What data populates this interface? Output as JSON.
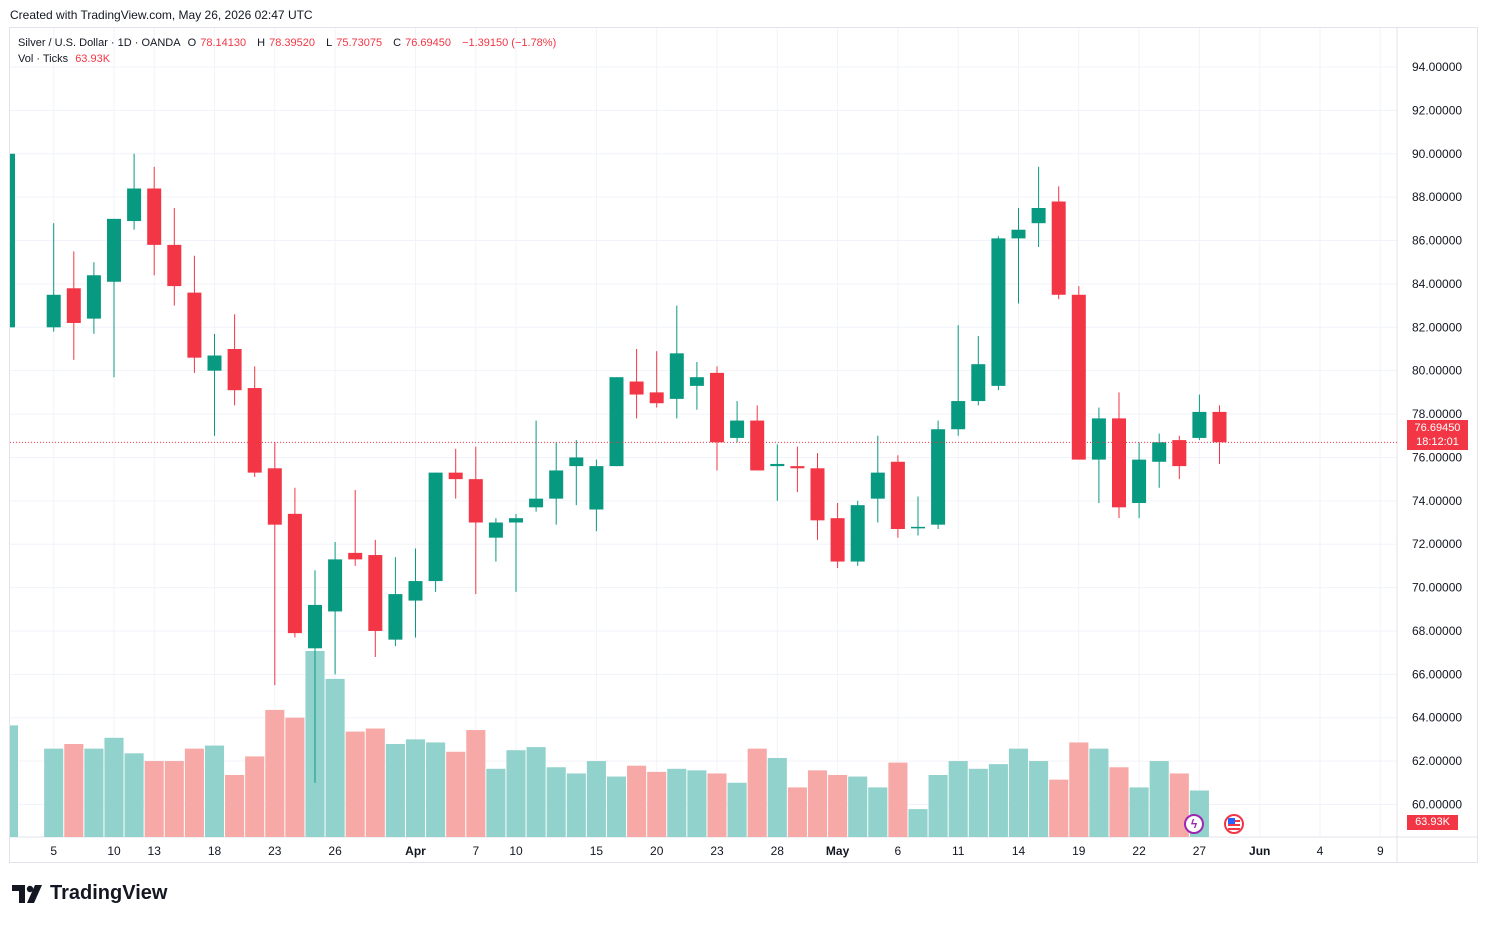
{
  "created_text": "Created with TradingView.com, May 26, 2026 02:47 UTC",
  "legend": {
    "symbol": "Silver / U.S. Dollar · 1D · OANDA",
    "o_label": "O",
    "o_value": "78.14130",
    "h_label": "H",
    "h_value": "78.39520",
    "l_label": "L",
    "l_value": "75.73075",
    "c_label": "C",
    "c_value": "76.69450",
    "change": "−1.39150 (−1.78%)",
    "vol_label": "Vol · Ticks",
    "vol_value": "63.93K"
  },
  "price_tag": {
    "price": "76.69450",
    "countdown": "18:12:01"
  },
  "volume_tag": "63.93K",
  "brand": "TradingView",
  "colors": {
    "up": "#089981",
    "down": "#f23645",
    "vol_up": "#92d2cc",
    "vol_down": "#f7a9a7",
    "grid": "#f0f3fa"
  },
  "markers": [
    {
      "icon": "lightning-icon",
      "color": "#9c27b0"
    },
    {
      "icon": "us-flag-icon",
      "color": "#f23645"
    }
  ],
  "chart_data": {
    "type": "candlestick",
    "ylim": [
      58.5,
      95.8
    ],
    "y_ticks": [
      "94.00000",
      "92.00000",
      "90.00000",
      "88.00000",
      "86.00000",
      "84.00000",
      "82.00000",
      "80.00000",
      "78.00000",
      "76.00000",
      "74.00000",
      "72.00000",
      "70.00000",
      "68.00000",
      "66.00000",
      "64.00000",
      "62.00000",
      "60.00000"
    ],
    "x_ticks": [
      "5",
      "10",
      "13",
      "18",
      "23",
      "26",
      "Apr",
      "7",
      "10",
      "15",
      "20",
      "23",
      "28",
      "May",
      "6",
      "11",
      "14",
      "19",
      "22",
      "27",
      "Jun",
      "4",
      "9"
    ],
    "last_price": 76.6945,
    "candles": [
      {
        "o": 82.0,
        "h": 90.0,
        "l": 82.0,
        "c": 90.0,
        "v": 0.72
      },
      {
        "o": 82.0,
        "h": 86.8,
        "l": 81.8,
        "c": 83.5,
        "v": 0.57
      },
      {
        "o": 83.8,
        "h": 85.5,
        "l": 80.5,
        "c": 82.2,
        "v": 0.6
      },
      {
        "o": 82.4,
        "h": 85.0,
        "l": 81.7,
        "c": 84.4,
        "v": 0.57
      },
      {
        "o": 84.1,
        "h": 87.0,
        "l": 79.7,
        "c": 87.0,
        "v": 0.64
      },
      {
        "o": 86.9,
        "h": 90.0,
        "l": 86.5,
        "c": 88.4,
        "v": 0.54
      },
      {
        "o": 88.4,
        "h": 89.4,
        "l": 84.4,
        "c": 85.8,
        "v": 0.49
      },
      {
        "o": 85.8,
        "h": 87.5,
        "l": 83.0,
        "c": 83.9,
        "v": 0.49
      },
      {
        "o": 83.6,
        "h": 85.3,
        "l": 79.9,
        "c": 80.6,
        "v": 0.57
      },
      {
        "o": 80.0,
        "h": 81.7,
        "l": 77.0,
        "c": 80.7,
        "v": 0.59
      },
      {
        "o": 81.0,
        "h": 82.6,
        "l": 78.4,
        "c": 79.1,
        "v": 0.4
      },
      {
        "o": 79.2,
        "h": 80.2,
        "l": 75.1,
        "c": 75.3,
        "v": 0.52
      },
      {
        "o": 75.5,
        "h": 76.7,
        "l": 65.5,
        "c": 72.9,
        "v": 0.82
      },
      {
        "o": 73.4,
        "h": 74.6,
        "l": 67.7,
        "c": 67.9,
        "v": 0.77
      },
      {
        "o": 67.2,
        "h": 70.8,
        "l": 61.0,
        "c": 69.2,
        "v": 1.2
      },
      {
        "o": 68.9,
        "h": 72.1,
        "l": 66.0,
        "c": 71.3,
        "v": 1.02
      },
      {
        "o": 71.6,
        "h": 74.5,
        "l": 71.0,
        "c": 71.3,
        "v": 0.68
      },
      {
        "o": 71.5,
        "h": 72.2,
        "l": 66.8,
        "c": 68.0,
        "v": 0.7
      },
      {
        "o": 67.6,
        "h": 71.4,
        "l": 67.3,
        "c": 69.7,
        "v": 0.6
      },
      {
        "o": 69.4,
        "h": 71.8,
        "l": 67.7,
        "c": 70.3,
        "v": 0.63
      },
      {
        "o": 70.3,
        "h": 75.3,
        "l": 69.8,
        "c": 75.3,
        "v": 0.61
      },
      {
        "o": 75.3,
        "h": 76.4,
        "l": 74.1,
        "c": 75.0,
        "v": 0.55
      },
      {
        "o": 75.0,
        "h": 76.5,
        "l": 69.7,
        "c": 73.0,
        "v": 0.69
      },
      {
        "o": 72.3,
        "h": 73.2,
        "l": 71.2,
        "c": 73.0,
        "v": 0.44
      },
      {
        "o": 73.0,
        "h": 73.4,
        "l": 69.8,
        "c": 73.2,
        "v": 0.56
      },
      {
        "o": 73.7,
        "h": 77.7,
        "l": 73.5,
        "c": 74.1,
        "v": 0.58
      },
      {
        "o": 74.1,
        "h": 76.7,
        "l": 72.9,
        "c": 75.4,
        "v": 0.45
      },
      {
        "o": 75.6,
        "h": 76.8,
        "l": 73.8,
        "c": 76.0,
        "v": 0.41
      },
      {
        "o": 73.6,
        "h": 75.9,
        "l": 72.6,
        "c": 75.6,
        "v": 0.49
      },
      {
        "o": 75.6,
        "h": 79.7,
        "l": 75.6,
        "c": 79.7,
        "v": 0.39
      },
      {
        "o": 79.5,
        "h": 81.0,
        "l": 77.8,
        "c": 78.9,
        "v": 0.46
      },
      {
        "o": 79.0,
        "h": 80.9,
        "l": 78.3,
        "c": 78.5,
        "v": 0.42
      },
      {
        "o": 78.7,
        "h": 83.0,
        "l": 77.8,
        "c": 80.8,
        "v": 0.44
      },
      {
        "o": 79.3,
        "h": 80.4,
        "l": 78.2,
        "c": 79.7,
        "v": 0.43
      },
      {
        "o": 79.9,
        "h": 80.2,
        "l": 75.4,
        "c": 76.7,
        "v": 0.41
      },
      {
        "o": 76.9,
        "h": 78.6,
        "l": 76.7,
        "c": 77.7,
        "v": 0.35
      },
      {
        "o": 77.7,
        "h": 78.4,
        "l": 75.4,
        "c": 75.4,
        "v": 0.57
      },
      {
        "o": 75.6,
        "h": 76.6,
        "l": 74.0,
        "c": 75.7,
        "v": 0.51
      },
      {
        "o": 75.6,
        "h": 76.5,
        "l": 74.4,
        "c": 75.5,
        "v": 0.32
      },
      {
        "o": 75.5,
        "h": 76.2,
        "l": 72.2,
        "c": 73.1,
        "v": 0.43
      },
      {
        "o": 73.2,
        "h": 73.9,
        "l": 70.9,
        "c": 71.2,
        "v": 0.4
      },
      {
        "o": 71.2,
        "h": 74.0,
        "l": 71.0,
        "c": 73.8,
        "v": 0.39
      },
      {
        "o": 74.1,
        "h": 77.0,
        "l": 73.0,
        "c": 75.3,
        "v": 0.32
      },
      {
        "o": 75.8,
        "h": 76.1,
        "l": 72.3,
        "c": 72.7,
        "v": 0.48
      },
      {
        "o": 72.8,
        "h": 74.2,
        "l": 72.4,
        "c": 72.8,
        "v": 0.18
      },
      {
        "o": 72.9,
        "h": 77.7,
        "l": 72.7,
        "c": 77.3,
        "v": 0.4
      },
      {
        "o": 77.3,
        "h": 82.1,
        "l": 77.0,
        "c": 78.6,
        "v": 0.49
      },
      {
        "o": 78.6,
        "h": 81.6,
        "l": 78.4,
        "c": 80.3,
        "v": 0.44
      },
      {
        "o": 79.3,
        "h": 86.2,
        "l": 79.1,
        "c": 86.1,
        "v": 0.47
      },
      {
        "o": 86.1,
        "h": 87.5,
        "l": 83.1,
        "c": 86.5,
        "v": 0.57
      },
      {
        "o": 86.8,
        "h": 89.4,
        "l": 85.7,
        "c": 87.5,
        "v": 0.49
      },
      {
        "o": 87.8,
        "h": 88.5,
        "l": 83.3,
        "c": 83.5,
        "v": 0.37
      },
      {
        "o": 83.5,
        "h": 83.9,
        "l": 75.9,
        "c": 75.9,
        "v": 0.61
      },
      {
        "o": 75.9,
        "h": 78.3,
        "l": 73.9,
        "c": 77.8,
        "v": 0.57
      },
      {
        "o": 77.8,
        "h": 79.0,
        "l": 73.2,
        "c": 73.7,
        "v": 0.45
      },
      {
        "o": 73.9,
        "h": 76.7,
        "l": 73.2,
        "c": 75.9,
        "v": 0.32
      },
      {
        "o": 75.8,
        "h": 77.1,
        "l": 74.6,
        "c": 76.7,
        "v": 0.49
      },
      {
        "o": 76.8,
        "h": 77.0,
        "l": 75.0,
        "c": 75.6,
        "v": 0.41
      },
      {
        "o": 76.9,
        "h": 78.9,
        "l": 76.8,
        "c": 78.1,
        "v": 0.3
      },
      {
        "o": 78.1,
        "h": 78.4,
        "l": 75.7,
        "c": 76.7,
        "v": 0.0
      }
    ]
  }
}
